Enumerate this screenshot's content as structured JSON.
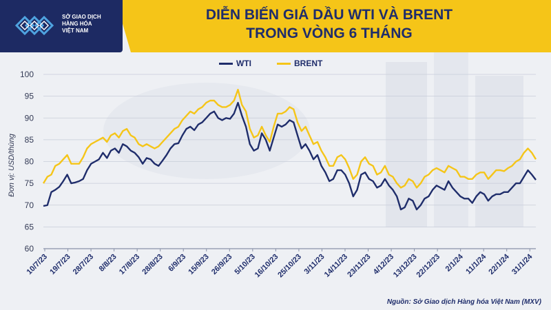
{
  "header": {
    "logo_lines": [
      "SỞ GIAO DỊCH",
      "HÀNG HÓA",
      "VIỆT NAM"
    ],
    "title_line1": "DIỄN BIẾN GIÁ DẦU WTI VÀ BRENT",
    "title_line2": "TRONG VÒNG 6 THÁNG",
    "accent_color": "#f5c518",
    "brand_color": "#1d2a63"
  },
  "source": "Nguồn: Sở Giao dịch Hàng hóa Việt Nam (MXV)",
  "chart_data": {
    "type": "line",
    "title": "DIỄN BIẾN GIÁ DẦU WTI VÀ BRENT TRONG VÒNG 6 THÁNG",
    "ylabel": "Đơn vị: USD/thùng",
    "xlabel": "",
    "ylim": [
      60,
      100
    ],
    "yticks": [
      60,
      65,
      70,
      75,
      80,
      85,
      90,
      95,
      100
    ],
    "grid": true,
    "legend_position": "top-center",
    "x_tick_labels": [
      "10/7/23",
      "19/7/23",
      "28/7/23",
      "8/8/23",
      "17/8/23",
      "28/8/23",
      "6/9/23",
      "15/9/23",
      "26/9/23",
      "5/10/23",
      "16/10/23",
      "25/10/23",
      "3/11/23",
      "14/11/23",
      "23/11/23",
      "4/12/23",
      "13/12/23",
      "22/12/23",
      "2/1/24",
      "11/1/24",
      "22/1/24",
      "31/1/24"
    ],
    "series": [
      {
        "name": "WTI",
        "color": "#1f2d6b",
        "values": [
          69.8,
          70.0,
          73.0,
          73.5,
          74.2,
          75.5,
          77.0,
          75.0,
          75.2,
          75.5,
          76.0,
          78.0,
          79.5,
          80.0,
          80.5,
          82.0,
          80.8,
          82.5,
          83.0,
          82.0,
          84.0,
          83.5,
          82.5,
          82.0,
          81.0,
          79.5,
          80.8,
          80.5,
          79.5,
          79.0,
          80.2,
          81.5,
          83.0,
          84.0,
          84.2,
          86.0,
          87.5,
          88.0,
          87.2,
          88.5,
          89.0,
          90.0,
          91.0,
          91.5,
          90.0,
          89.5,
          90.0,
          89.8,
          91.0,
          93.5,
          90.5,
          88.0,
          84.0,
          82.5,
          83.0,
          86.5,
          85.0,
          82.5,
          85.5,
          88.5,
          88.0,
          88.5,
          89.5,
          89.0,
          86.0,
          83.0,
          84.0,
          82.5,
          80.5,
          81.5,
          79.0,
          77.5,
          75.5,
          76.0,
          78.0,
          78.0,
          77.0,
          75.0,
          72.0,
          73.5,
          77.0,
          77.5,
          76.0,
          75.5,
          74.0,
          74.5,
          76.0,
          74.5,
          73.5,
          72.0,
          69.0,
          69.5,
          71.5,
          71.0,
          69.0,
          70.0,
          71.5,
          72.0,
          73.5,
          74.5,
          74.0,
          73.5,
          75.5,
          74.0,
          73.0,
          72.0,
          71.5,
          71.5,
          70.5,
          72.0,
          73.0,
          72.5,
          71.0,
          72.0,
          72.5,
          72.5,
          73.0,
          73.0,
          74.0,
          75.0,
          75.0,
          76.5,
          78.0,
          77.0,
          75.8
        ]
      },
      {
        "name": "BRENT",
        "color": "#f5c518",
        "values": [
          75.0,
          76.5,
          77.0,
          79.0,
          79.5,
          80.5,
          81.5,
          79.5,
          79.5,
          79.5,
          81.0,
          83.0,
          84.0,
          84.5,
          85.0,
          85.5,
          84.5,
          86.0,
          86.5,
          85.5,
          87.0,
          87.5,
          86.0,
          85.5,
          84.0,
          83.5,
          84.0,
          83.5,
          83.0,
          83.5,
          84.5,
          85.5,
          86.5,
          87.5,
          88.0,
          89.5,
          90.5,
          91.5,
          91.0,
          92.0,
          92.5,
          93.5,
          94.0,
          94.0,
          93.0,
          92.5,
          92.5,
          93.0,
          94.0,
          96.5,
          93.0,
          91.5,
          87.5,
          85.5,
          86.0,
          88.0,
          86.0,
          84.5,
          88.0,
          91.0,
          91.0,
          91.5,
          92.5,
          92.0,
          89.0,
          87.0,
          88.0,
          86.0,
          84.0,
          84.5,
          82.5,
          81.0,
          79.0,
          79.0,
          81.0,
          81.5,
          80.5,
          78.5,
          76.0,
          77.0,
          80.0,
          81.0,
          79.5,
          79.0,
          77.0,
          77.5,
          79.0,
          77.0,
          76.5,
          75.0,
          74.0,
          74.5,
          76.0,
          75.5,
          74.0,
          75.0,
          76.5,
          77.0,
          78.0,
          78.5,
          78.0,
          77.5,
          79.0,
          78.5,
          78.0,
          76.5,
          76.5,
          76.0,
          76.0,
          77.0,
          77.5,
          77.5,
          76.0,
          77.0,
          78.0,
          78.0,
          77.8,
          78.5,
          79.0,
          80.0,
          80.5,
          82.0,
          83.0,
          82.0,
          80.5
        ]
      }
    ]
  }
}
